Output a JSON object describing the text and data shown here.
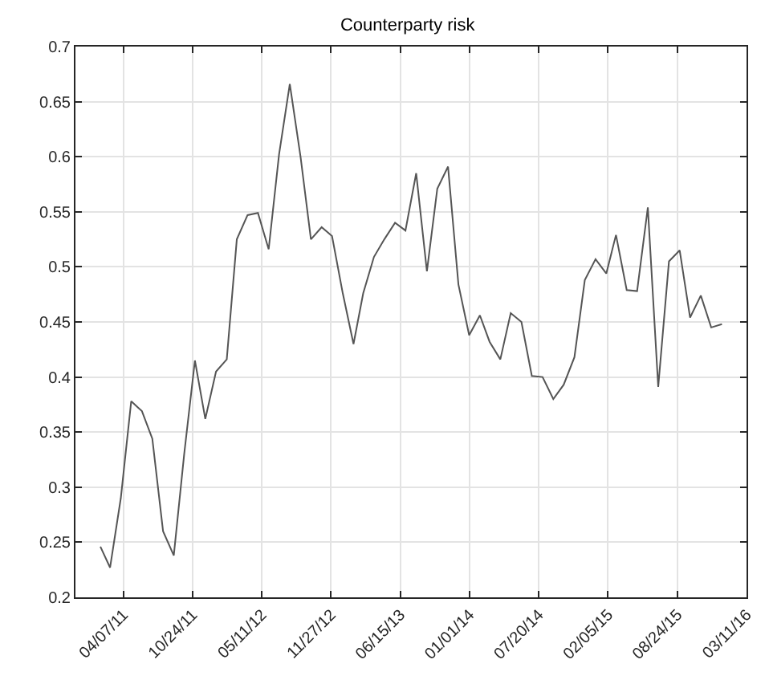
{
  "chart_data": {
    "type": "line",
    "title": "Counterparty risk",
    "x": [
      "2011-01-31",
      "2011-02-28",
      "2011-03-31",
      "2011-04-30",
      "2011-05-31",
      "2011-06-30",
      "2011-07-31",
      "2011-08-31",
      "2011-09-30",
      "2011-10-31",
      "2011-11-30",
      "2011-12-31",
      "2012-01-31",
      "2012-02-29",
      "2012-03-31",
      "2012-04-30",
      "2012-05-31",
      "2012-06-30",
      "2012-07-31",
      "2012-08-31",
      "2012-09-30",
      "2012-10-31",
      "2012-11-30",
      "2012-12-31",
      "2013-01-31",
      "2013-02-28",
      "2013-03-31",
      "2013-04-30",
      "2013-05-31",
      "2013-06-30",
      "2013-07-31",
      "2013-08-31",
      "2013-09-30",
      "2013-10-31",
      "2013-11-30",
      "2013-12-31",
      "2014-01-31",
      "2014-02-28",
      "2014-03-31",
      "2014-04-30",
      "2014-05-31",
      "2014-06-30",
      "2014-07-31",
      "2014-08-31",
      "2014-09-30",
      "2014-10-31",
      "2014-11-30",
      "2014-12-31",
      "2015-01-31",
      "2015-02-28",
      "2015-03-31",
      "2015-04-30",
      "2015-05-31",
      "2015-06-30",
      "2015-07-31",
      "2015-08-31",
      "2015-09-30",
      "2015-10-31",
      "2015-11-30",
      "2015-12-31"
    ],
    "series": [
      {
        "color": "#555555",
        "values": [
          0.246,
          0.227,
          0.29,
          0.378,
          0.369,
          0.344,
          0.26,
          0.238,
          0.33,
          0.415,
          0.362,
          0.405,
          0.416,
          0.525,
          0.547,
          0.549,
          0.516,
          0.602,
          0.666,
          0.6,
          0.525,
          0.536,
          0.528,
          0.476,
          0.43,
          0.476,
          0.509,
          0.525,
          0.54,
          0.533,
          0.585,
          0.496,
          0.571,
          0.591,
          0.484,
          0.438,
          0.456,
          0.432,
          0.416,
          0.458,
          0.45,
          0.401,
          0.4,
          0.38,
          0.393,
          0.418,
          0.488,
          0.507,
          0.494,
          0.529,
          0.479,
          0.478,
          0.554,
          0.391,
          0.505,
          0.515,
          0.454,
          0.474,
          0.445,
          0.448
        ]
      }
    ],
    "xlim": [
      "2010-11-20",
      "2016-03-11"
    ],
    "xticks": [
      {
        "value": "2011-04-07",
        "label": "04/07/11"
      },
      {
        "value": "2011-10-24",
        "label": "10/24/11"
      },
      {
        "value": "2012-05-11",
        "label": "05/11/12"
      },
      {
        "value": "2012-11-27",
        "label": "11/27/12"
      },
      {
        "value": "2013-06-15",
        "label": "06/15/13"
      },
      {
        "value": "2014-01-01",
        "label": "01/01/14"
      },
      {
        "value": "2014-07-20",
        "label": "07/20/14"
      },
      {
        "value": "2015-02-05",
        "label": "02/05/15"
      },
      {
        "value": "2015-08-24",
        "label": "08/24/15"
      },
      {
        "value": "2016-03-11",
        "label": "03/11/16"
      }
    ],
    "ylim": [
      0.2,
      0.7
    ],
    "yticks": [
      0.2,
      0.25,
      0.3,
      0.35,
      0.4,
      0.45,
      0.5,
      0.55,
      0.6,
      0.65,
      0.7
    ],
    "grid": true,
    "marker": "none",
    "line_style": "solid"
  }
}
